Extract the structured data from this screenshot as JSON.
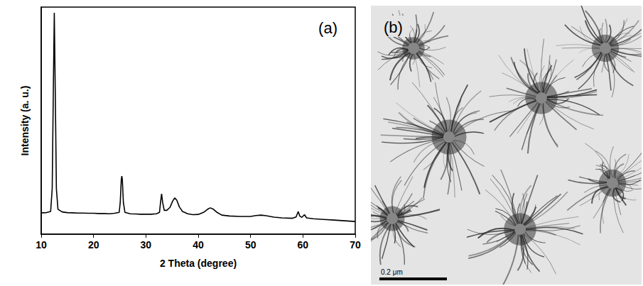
{
  "chart_data": {
    "type": "line",
    "annotations": [
      "(a)"
    ],
    "x_label": "2 Theta (degree)",
    "y_label": "Intensity (a. u.)",
    "x": [
      10,
      11,
      11.8,
      12.1,
      12.3,
      12.5,
      12.7,
      12.9,
      13.2,
      14,
      15,
      16,
      17,
      18,
      19,
      20,
      21,
      22,
      23,
      24,
      24.9,
      25.1,
      25.3,
      25.4,
      25.5,
      25.7,
      26,
      27,
      28,
      29,
      30,
      31,
      32,
      32.6,
      32.8,
      33.0,
      33.2,
      33.5,
      34,
      34.6,
      35.1,
      35.5,
      35.9,
      36.4,
      37,
      38,
      39,
      40,
      41,
      41.8,
      42.3,
      42.9,
      43.6,
      44.5,
      46,
      48,
      50,
      51,
      52,
      53,
      54.5,
      56,
      58,
      58.7,
      59.1,
      59.4,
      59.8,
      60.3,
      60.7,
      62,
      64,
      66,
      68,
      70
    ],
    "values": [
      9.4,
      9.5,
      10,
      20,
      60,
      97.5,
      60,
      20,
      11,
      9.8,
      9.5,
      9.4,
      9.3,
      9.3,
      9.2,
      9.2,
      9.1,
      9.1,
      9.0,
      9.2,
      9.6,
      14,
      24,
      25.6,
      24,
      14,
      9.6,
      9.0,
      8.9,
      8.8,
      8.8,
      8.8,
      9.0,
      9.6,
      14,
      17.8,
      14,
      10.5,
      10.5,
      11.8,
      14.5,
      16,
      15,
      12,
      10,
      9.0,
      8.6,
      8.7,
      9.6,
      11,
      11.6,
      11,
      9.6,
      8.4,
      8.0,
      7.8,
      7.8,
      8.2,
      8.4,
      8.1,
      7.5,
      7.2,
      7.0,
      7.6,
      10,
      8,
      7.4,
      8.6,
      7.2,
      6.8,
      6.5,
      6.2,
      5.9,
      5.6
    ],
    "color": "#000000",
    "xlim": [
      10,
      70
    ],
    "xticks": [
      10,
      20,
      30,
      40,
      50,
      60,
      70
    ],
    "ylim": [
      0,
      100
    ],
    "yticks": [],
    "grid": false,
    "tick_labels": "x"
  },
  "image": {
    "label": "(b)",
    "scale_bar": "0.2 μm"
  }
}
